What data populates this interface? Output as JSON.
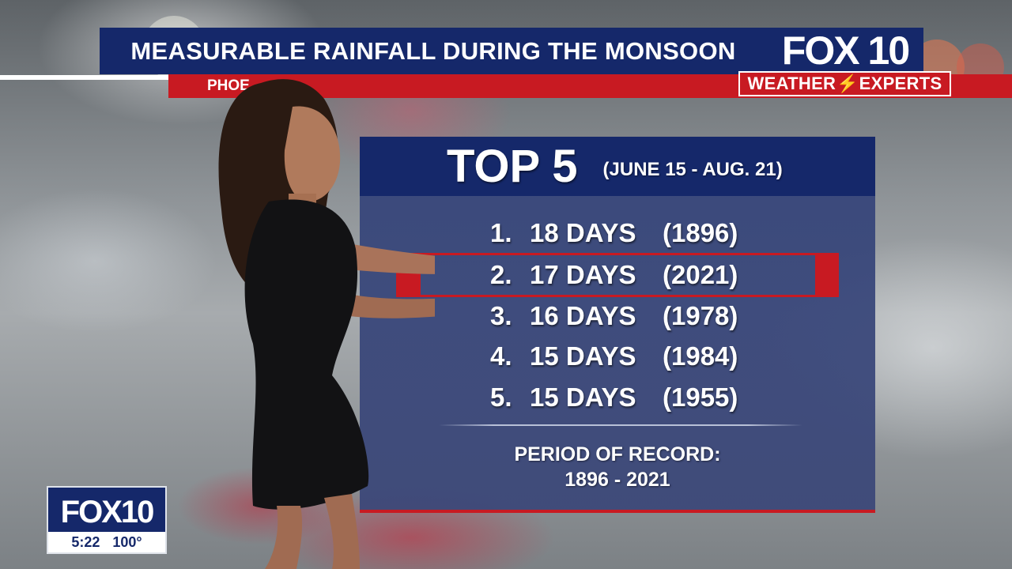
{
  "banner": {
    "title": "MEASURABLE RAINFALL DURING THE MONSOON",
    "ticker_partial": "PHOE"
  },
  "logo": {
    "brand": "FOX 10",
    "tag_left": "WEATHER",
    "tag_right": "EXPERTS"
  },
  "panel": {
    "heading": "TOP 5",
    "date_range": "(JUNE 15 - AUG. 21)",
    "rows": [
      {
        "rank": "1.",
        "days": "18 DAYS",
        "year": "(1896)"
      },
      {
        "rank": "2.",
        "days": "17 DAYS",
        "year": "(2021)"
      },
      {
        "rank": "3.",
        "days": "16 DAYS",
        "year": "(1978)"
      },
      {
        "rank": "4.",
        "days": "15 DAYS",
        "year": "(1984)"
      },
      {
        "rank": "5.",
        "days": "15 DAYS",
        "year": "(1955)"
      }
    ],
    "record_label": "PERIOD OF RECORD:",
    "record_range": "1896 - 2021"
  },
  "bug": {
    "brand": "FOX10",
    "time": "5:22",
    "temp": "100°"
  },
  "colors": {
    "navy": "#15286a",
    "red": "#c81a22",
    "panel": "#34447a"
  }
}
